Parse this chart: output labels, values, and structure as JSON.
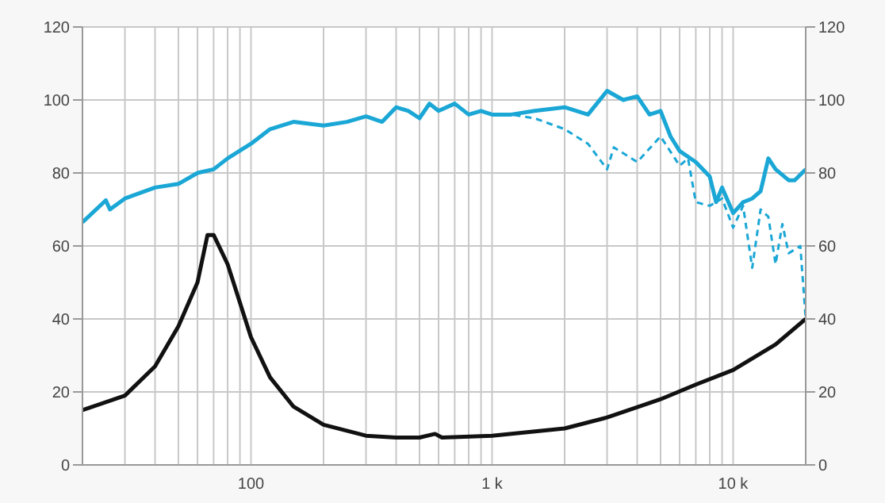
{
  "chart_data": {
    "type": "line",
    "log": "x",
    "grid": true,
    "marker": "none",
    "xlim": [
      20,
      20000
    ],
    "xticks": [
      {
        "value": 20,
        "label": null
      },
      {
        "value": 30,
        "label": null
      },
      {
        "value": 40,
        "label": null
      },
      {
        "value": 50,
        "label": null
      },
      {
        "value": 60,
        "label": null
      },
      {
        "value": 70,
        "label": null
      },
      {
        "value": 80,
        "label": null
      },
      {
        "value": 90,
        "label": null
      },
      100,
      {
        "value": 200,
        "label": null
      },
      {
        "value": 300,
        "label": null
      },
      {
        "value": 400,
        "label": null
      },
      {
        "value": 500,
        "label": null
      },
      {
        "value": 600,
        "label": null
      },
      {
        "value": 700,
        "label": null
      },
      {
        "value": 800,
        "label": null
      },
      {
        "value": 900,
        "label": null
      },
      {
        "value": 1000,
        "label": "1 k"
      },
      {
        "value": 2000,
        "label": null
      },
      {
        "value": 3000,
        "label": null
      },
      {
        "value": 4000,
        "label": null
      },
      {
        "value": 5000,
        "label": null
      },
      {
        "value": 6000,
        "label": null
      },
      {
        "value": 7000,
        "label": null
      },
      {
        "value": 8000,
        "label": null
      },
      {
        "value": 9000,
        "label": null
      },
      {
        "value": 10000,
        "label": "10 k"
      },
      {
        "value": 20000,
        "label": null
      }
    ],
    "ylim": [
      0,
      120
    ],
    "yticks": [
      0,
      20,
      40,
      60,
      80,
      100,
      120
    ],
    "y2lim": [
      0,
      120
    ],
    "y2ticks": [
      0,
      20,
      40,
      60,
      80,
      100,
      120
    ],
    "series": [
      {
        "color": "#1ba7d6",
        "line_style": "solid",
        "x": [
          20,
          25,
          26,
          30,
          40,
          50,
          60,
          70,
          80,
          100,
          120,
          150,
          200,
          250,
          300,
          350,
          400,
          450,
          500,
          550,
          600,
          700,
          800,
          900,
          1000,
          1200,
          1500,
          2000,
          2500,
          3000,
          3500,
          4000,
          4500,
          5000,
          5500,
          6000,
          7000,
          8000,
          8500,
          9000,
          10000,
          11000,
          12000,
          13000,
          14000,
          15000,
          17000,
          18000,
          20000
        ],
        "values": [
          66.5,
          72.5,
          70,
          73,
          76,
          77,
          80,
          81,
          84,
          88,
          92,
          94,
          93,
          94,
          95.5,
          94,
          98,
          97,
          95,
          99,
          97,
          99,
          96,
          97,
          96,
          96,
          97,
          98,
          96,
          102.5,
          100,
          101,
          96,
          97,
          90,
          86,
          83,
          79,
          72,
          76,
          69,
          72,
          73,
          75,
          84,
          81,
          78,
          78,
          81
        ]
      },
      {
        "color": "#1ba7d6",
        "line_style": "dashed",
        "x": [
          1000,
          1200,
          1500,
          2000,
          2500,
          3000,
          3200,
          4000,
          5000,
          6000,
          6500,
          7000,
          8000,
          9000,
          10000,
          11000,
          12000,
          13000,
          14000,
          15000,
          16000,
          17000,
          19000,
          20000
        ],
        "values": [
          96,
          96,
          95,
          92,
          88,
          81,
          87,
          83,
          90,
          82,
          84,
          72,
          71,
          73,
          65,
          71,
          54,
          70,
          68,
          55,
          66,
          58,
          60,
          40
        ]
      },
      {
        "color": "#111111",
        "line_style": "solid",
        "x": [
          20,
          30,
          40,
          50,
          60,
          66,
          70,
          80,
          100,
          120,
          150,
          200,
          300,
          400,
          500,
          580,
          620,
          1000,
          2000,
          3000,
          5000,
          7000,
          10000,
          15000,
          20000
        ],
        "values": [
          15,
          19,
          27,
          38,
          50,
          63,
          63,
          55,
          35,
          24,
          16,
          11,
          8,
          7.5,
          7.5,
          8.5,
          7.5,
          8,
          10,
          13,
          18,
          22,
          26,
          33,
          40
        ]
      }
    ]
  }
}
